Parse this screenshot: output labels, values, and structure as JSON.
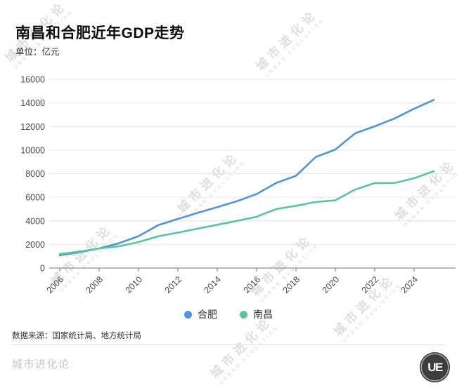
{
  "header": {
    "title": "南昌和合肥近年GDP走势",
    "unit_label": "单位：亿元"
  },
  "chart_data": {
    "type": "line",
    "title": "南昌和合肥近年GDP走势",
    "ylabel": "亿元",
    "x": [
      2006,
      2007,
      2008,
      2009,
      2010,
      2011,
      2012,
      2013,
      2014,
      2015,
      2016,
      2017,
      2018,
      2019,
      2020,
      2021,
      2022,
      2023,
      2024,
      2025
    ],
    "xticks": [
      2006,
      2008,
      2010,
      2012,
      2014,
      2016,
      2018,
      2020,
      2022,
      2024
    ],
    "ylim": [
      0,
      16000
    ],
    "ytick_step": 2000,
    "grid": true,
    "legend_position": "bottom",
    "series": [
      {
        "id": "hefei",
        "name": "合肥",
        "color": "#4f94e0",
        "values": [
          1074,
          1334,
          1665,
          2102,
          2702,
          3637,
          4164,
          4673,
          5158,
          5660,
          6274,
          7213,
          7823,
          9409,
          10046,
          11413,
          12013,
          12674,
          13508,
          14250
        ]
      },
      {
        "id": "nanchang",
        "name": "南昌",
        "color": "#57c69d",
        "values": [
          1185,
          1390,
          1660,
          1838,
          2200,
          2689,
          3001,
          3336,
          3668,
          4000,
          4355,
          5003,
          5275,
          5596,
          5746,
          6651,
          7204,
          7204,
          7613,
          8210
        ]
      }
    ]
  },
  "footer": {
    "source": "数据来源：国家统计局、地方统计局",
    "brand": "城市进化论",
    "logo_text": "UE"
  },
  "watermark": {
    "text": "城市进化论",
    "subtext": "URBAN EVOLUTION"
  },
  "colors": {
    "gridline": "#e6e6e6",
    "axis": "#8f8f8f",
    "tick_label": "#4a4a4a"
  }
}
